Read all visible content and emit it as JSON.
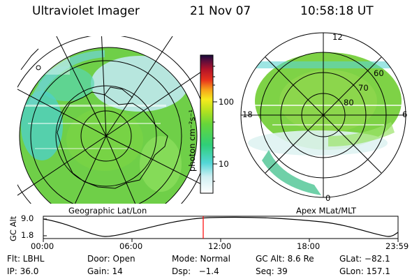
{
  "header": {
    "title": "Ultraviolet Imager",
    "date": "21 Nov 07",
    "time": "10:58:18 UT"
  },
  "left_map": {
    "caption": "Geographic Lat/Lon"
  },
  "right_map": {
    "caption": "Apex MLat/MLT",
    "mlt_labels": {
      "top": "12",
      "bottom": "0",
      "left": "18",
      "right": "6"
    },
    "lat_labels": [
      "60",
      "70",
      "80"
    ]
  },
  "colorbar": {
    "unit_label": "photon cm⁻²s⁻¹",
    "ticks": [
      "100",
      "10"
    ]
  },
  "altitude_plot": {
    "ylabel": "GC Alt",
    "ytick_labels": [
      "9.0",
      "1.8"
    ],
    "xtick_labels": [
      "00:00",
      "06:00",
      "12:00",
      "18:00",
      "23:59"
    ]
  },
  "info": {
    "row1": {
      "flt": "Flt: LBHL",
      "door": "Door: Open",
      "mode": "Mode: Normal",
      "gcalt": "GC Alt: 8.6 Re",
      "glat": "GLat: −82.1"
    },
    "row2": {
      "ip": "IP: 36.0",
      "gain": "Gain: 14",
      "dsp": "Dsp:   −1.4",
      "seq": "Seq: 39",
      "glon": "GLon: 157.1"
    }
  },
  "colors": {
    "accent_line": "#ff0000",
    "grid": "#000000"
  }
}
